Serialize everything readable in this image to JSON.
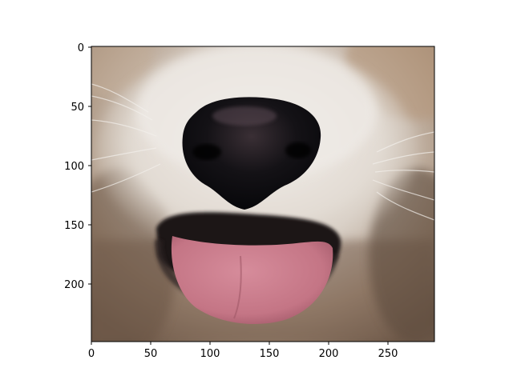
{
  "figure": {
    "x_ticks": [
      "0",
      "50",
      "100",
      "150",
      "200",
      "250"
    ],
    "y_ticks": [
      "0",
      "50",
      "100",
      "150",
      "200"
    ]
  },
  "image": {
    "subject": "close-up of a dog's nose and mouth with pink tongue out",
    "colors": {
      "fur_light": "#e8e4df",
      "fur_tan": "#b49a82",
      "fur_dark": "#5e4a3c",
      "nose": "#111013",
      "mouth": "#1a1414",
      "tongue": "#c97d8c",
      "tongue_dark": "#a85e6e"
    }
  }
}
